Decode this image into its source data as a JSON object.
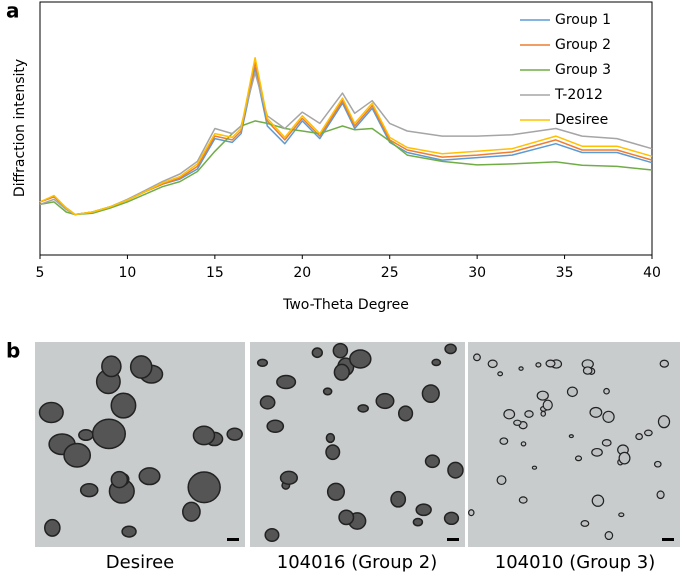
{
  "panel_a_label": "a",
  "chart_data": {
    "type": "line",
    "xlabel": "Two-Theta Degree",
    "ylabel": "Diffraction intensity",
    "x": [
      5,
      5.8,
      6.5,
      7,
      8,
      9,
      10,
      11,
      12,
      13,
      14,
      15,
      16,
      16.5,
      17.3,
      18,
      19,
      20,
      21,
      22.3,
      23,
      24,
      25,
      26,
      28,
      30,
      32,
      34.5,
      36,
      38,
      40
    ],
    "xlim": [
      5,
      40
    ],
    "xticks": [
      5,
      10,
      15,
      20,
      25,
      30,
      35,
      40
    ],
    "ylim": [
      0,
      100
    ],
    "legend": "upper right",
    "series": [
      {
        "name": "Group 1",
        "color": "#5b9bd5",
        "values": [
          21,
          23,
          18.6,
          16,
          17,
          19,
          21.7,
          25,
          28,
          30,
          34,
          46,
          44.5,
          48,
          74,
          51,
          44,
          53,
          46,
          60,
          50,
          58,
          44.5,
          40.5,
          37.5,
          38.5,
          39.5,
          44,
          40.5,
          40.5,
          36.5
        ]
      },
      {
        "name": "Group 2",
        "color": "#ed7d31",
        "values": [
          21,
          23,
          18.6,
          16,
          17,
          19,
          21.7,
          25,
          28,
          30.4,
          35,
          47,
          45.5,
          49,
          76,
          53,
          45.5,
          54,
          47,
          61,
          51,
          59,
          45.5,
          41.5,
          38.7,
          39.5,
          40.7,
          45.5,
          41.5,
          41.5,
          37.5
        ]
      },
      {
        "name": "Group 3",
        "color": "#70ad47",
        "values": [
          20,
          21,
          17,
          16,
          16.5,
          18.5,
          21,
          24,
          27,
          29,
          33,
          41,
          48,
          51,
          53,
          52,
          50,
          49,
          48,
          51,
          49.5,
          50,
          45,
          39.5,
          37,
          35.6,
          36,
          36.8,
          35.5,
          35,
          33.6
        ]
      },
      {
        "name": "T-2012",
        "color": "#a5a5a5",
        "values": [
          20,
          22,
          18,
          16,
          17,
          19,
          22,
          25.5,
          29,
          32,
          37,
          50,
          48,
          51,
          72,
          55,
          50,
          56.5,
          52,
          64,
          56,
          61,
          52,
          49,
          47,
          47,
          47.5,
          50,
          47,
          46,
          42
        ]
      },
      {
        "name": "Desiree",
        "color": "#ffc000",
        "values": [
          21,
          23.5,
          18.6,
          16,
          17,
          19,
          21.7,
          25,
          28.5,
          31,
          36,
          48,
          46.5,
          50,
          78,
          54,
          46.5,
          55,
          48,
          62,
          52,
          60,
          46.5,
          42.5,
          40,
          41,
          42,
          47,
          43,
          43,
          39
        ]
      }
    ]
  },
  "panel_b": {
    "label": "b",
    "images": [
      {
        "caption": "Desiree"
      },
      {
        "caption": "104016 (Group 2)"
      },
      {
        "caption": "104010 (Group 3)"
      }
    ]
  }
}
